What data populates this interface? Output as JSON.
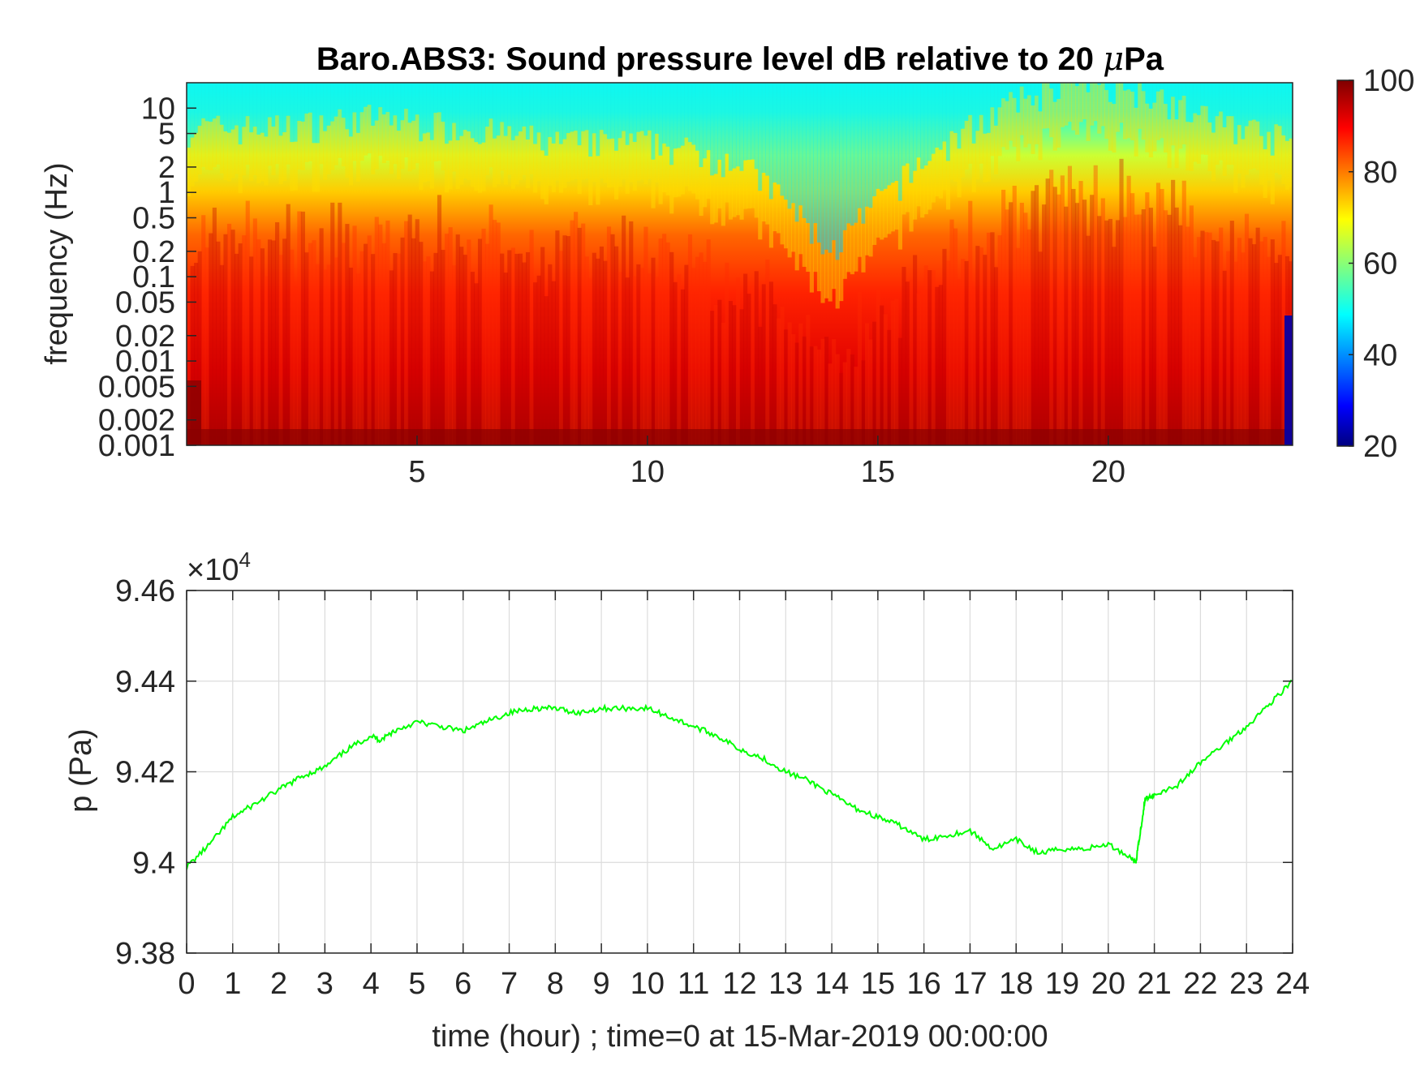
{
  "chart_data": [
    {
      "type": "heatmap",
      "title_prefix": "Baro.ABS3: Sound pressure level dB relative to 20 ",
      "title_mu": "μ",
      "title_suffix": "Pa",
      "ylabel": "frequency (Hz)",
      "xlabel": "",
      "xlim": [
        0,
        24
      ],
      "ylim": [
        0.001,
        20
      ],
      "yscale": "log",
      "xticks": [
        "5",
        "10",
        "15",
        "20"
      ],
      "xtick_values": [
        5,
        10,
        15,
        20
      ],
      "yticks": [
        "10",
        "5",
        "2",
        "1",
        "0.5",
        "0.2",
        "0.1",
        "0.05",
        "0.02",
        "0.01",
        "0.005",
        "0.002",
        "0.001"
      ],
      "ytick_values": [
        10,
        5,
        2,
        1,
        0.5,
        0.2,
        0.1,
        0.05,
        0.02,
        0.01,
        0.005,
        0.002,
        0.001
      ],
      "colorbar": {
        "colormap": "jet",
        "range": [
          20,
          100
        ],
        "ticks": [
          "20",
          "40",
          "60",
          "80",
          "100"
        ],
        "tick_values": [
          20,
          40,
          60,
          80,
          100
        ]
      },
      "upper_edge_frequency_vs_hour": {
        "hours": [
          0,
          2,
          4,
          6,
          8,
          10,
          12,
          13,
          14,
          15,
          16,
          17,
          18,
          19,
          20,
          21,
          22,
          23,
          24
        ],
        "hz": [
          1.5,
          1.5,
          2,
          1.5,
          1,
          1,
          0.6,
          0.2,
          0.05,
          0.2,
          0.6,
          1.5,
          3,
          5,
          5,
          4,
          2,
          1.5,
          1
        ]
      }
    },
    {
      "type": "line",
      "title": "",
      "xlabel": "time (hour) ; time=0 at 15-Mar-2019 00:00:00",
      "ylabel": "p (Pa)",
      "exponent_label": "×10",
      "exponent": "4",
      "xlim": [
        0,
        24
      ],
      "ylim": [
        9.38,
        9.46
      ],
      "grid": true,
      "line_color": "#00ff00",
      "xticks": [
        "0",
        "1",
        "2",
        "3",
        "4",
        "5",
        "6",
        "7",
        "8",
        "9",
        "10",
        "11",
        "12",
        "13",
        "14",
        "15",
        "16",
        "17",
        "18",
        "19",
        "20",
        "21",
        "22",
        "23",
        "24"
      ],
      "xtick_values": [
        0,
        1,
        2,
        3,
        4,
        5,
        6,
        7,
        8,
        9,
        10,
        11,
        12,
        13,
        14,
        15,
        16,
        17,
        18,
        19,
        20,
        21,
        22,
        23,
        24
      ],
      "yticks": [
        "9.38",
        "9.4",
        "9.42",
        "9.44",
        "9.46"
      ],
      "ytick_values": [
        9.38,
        9.4,
        9.42,
        9.44,
        9.46
      ],
      "series": [
        {
          "x": [
            0,
            0.5,
            1,
            1.5,
            2,
            2.5,
            3,
            3.5,
            4,
            4.2,
            4.5,
            5,
            5.5,
            6,
            6.5,
            7,
            7.5,
            8,
            8.5,
            9,
            9.5,
            10,
            10.5,
            11,
            11.5,
            12,
            12.5,
            13,
            13.5,
            14,
            14.5,
            15,
            15.5,
            16,
            16.5,
            17,
            17.5,
            18,
            18.5,
            19,
            19.5,
            20,
            20.5,
            20.6,
            20.7,
            20.8,
            21,
            21.5,
            22,
            22.5,
            23,
            23.5,
            24
          ],
          "y": [
            9.399,
            9.404,
            9.41,
            9.413,
            9.416,
            9.419,
            9.421,
            9.425,
            9.428,
            9.427,
            9.429,
            9.431,
            9.43,
            9.429,
            9.431,
            9.433,
            9.434,
            9.434,
            9.433,
            9.434,
            9.434,
            9.434,
            9.432,
            9.43,
            9.428,
            9.425,
            9.423,
            9.42,
            9.418,
            9.415,
            9.412,
            9.41,
            9.408,
            9.405,
            9.406,
            9.407,
            9.403,
            9.405,
            9.402,
            9.403,
            9.403,
            9.404,
            9.401,
            9.4,
            9.407,
            9.414,
            9.415,
            9.417,
            9.422,
            9.426,
            9.43,
            9.435,
            9.44
          ]
        }
      ]
    }
  ]
}
